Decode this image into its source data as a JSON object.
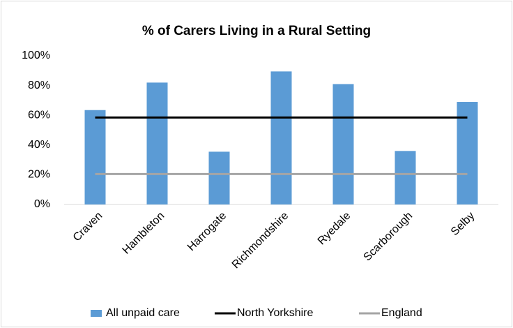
{
  "chart_data": {
    "type": "bar",
    "title": "% of Carers Living in a Rural Setting",
    "categories": [
      "Craven",
      "Hambleton",
      "Harrogate",
      "Richmondshire",
      "Ryedale",
      "Scarborough",
      "Selby"
    ],
    "series": [
      {
        "name": "All unpaid care",
        "type": "bar",
        "color": "#5b9bd5",
        "values": [
          63.5,
          82,
          35.5,
          89.5,
          81,
          36,
          69
        ]
      },
      {
        "name": "North Yorkshire",
        "type": "line",
        "color": "#000000",
        "values": [
          58.5,
          58.5,
          58.5,
          58.5,
          58.5,
          58.5,
          58.5
        ]
      },
      {
        "name": "England",
        "type": "line",
        "color": "#a5a5a5",
        "values": [
          20.5,
          20.5,
          20.5,
          20.5,
          20.5,
          20.5,
          20.5
        ]
      }
    ],
    "ylim": [
      0,
      100
    ],
    "yticks": [
      {
        "value": 0,
        "label": "0%"
      },
      {
        "value": 20,
        "label": "20%"
      },
      {
        "value": 40,
        "label": "40%"
      },
      {
        "value": 60,
        "label": "60%"
      },
      {
        "value": 80,
        "label": "80%"
      },
      {
        "value": 100,
        "label": "100%"
      }
    ],
    "legend": "bottom"
  }
}
